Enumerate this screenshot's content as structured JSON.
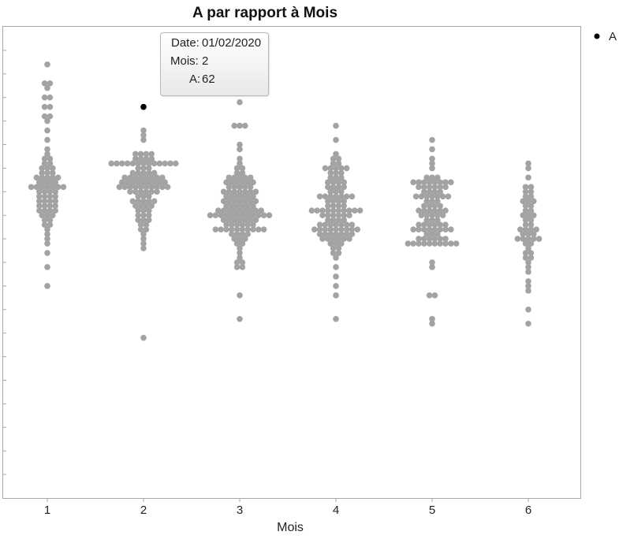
{
  "chart_data": {
    "type": "scatter",
    "style": "beeswarm",
    "title": "A par rapport à Mois",
    "xlabel": "Mois",
    "ylabel": "",
    "categories": [
      "1",
      "2",
      "3",
      "4",
      "5",
      "6"
    ],
    "ylim": [
      0,
      100
    ],
    "grid": false,
    "legend": {
      "position": "top-right",
      "entries": [
        "A"
      ]
    },
    "point_color": "#a3a3a3",
    "highlight_color": "#000000",
    "series": [
      {
        "name": "A",
        "category": "1",
        "values": [
          92,
          88,
          88,
          87,
          85,
          85,
          83,
          83,
          81,
          81,
          80,
          78,
          76,
          74,
          73,
          72,
          72,
          71,
          71,
          70,
          70,
          70,
          69,
          69,
          69,
          68,
          68,
          68,
          68,
          68,
          67,
          67,
          67,
          67,
          66,
          66,
          66,
          66,
          66,
          66,
          66,
          65,
          65,
          65,
          65,
          64,
          64,
          64,
          64,
          63,
          63,
          63,
          63,
          62,
          62,
          62,
          62,
          61,
          61,
          61,
          61,
          60,
          60,
          60,
          59,
          59,
          58,
          58,
          57,
          56,
          55,
          54,
          52,
          49,
          45
        ]
      },
      {
        "name": "A",
        "category": "2",
        "values": [
          62,
          83,
          78,
          77,
          76,
          73,
          73,
          73,
          73,
          72,
          72,
          72,
          72,
          71,
          71,
          71,
          71,
          71,
          71,
          71,
          71,
          71,
          71,
          71,
          71,
          71,
          70,
          70,
          70,
          69,
          69,
          69,
          69,
          69,
          68,
          68,
          68,
          68,
          68,
          68,
          68,
          68,
          67,
          67,
          67,
          67,
          67,
          67,
          67,
          67,
          67,
          66,
          66,
          66,
          66,
          66,
          66,
          66,
          66,
          66,
          66,
          65,
          65,
          65,
          65,
          65,
          65,
          64,
          64,
          64,
          63,
          63,
          63,
          63,
          63,
          62,
          62,
          62,
          61,
          61,
          61,
          60,
          60,
          60,
          59,
          59,
          59,
          58,
          58,
          57,
          57,
          56,
          55,
          54,
          53,
          34
        ]
      },
      {
        "name": "A",
        "category": "3",
        "values": [
          87,
          84,
          79,
          79,
          79,
          75,
          74,
          72,
          71,
          70,
          70,
          69,
          69,
          68,
          68,
          68,
          68,
          68,
          67,
          67,
          67,
          67,
          67,
          67,
          66,
          66,
          66,
          66,
          66,
          65,
          65,
          65,
          65,
          65,
          65,
          65,
          64,
          64,
          64,
          64,
          64,
          64,
          63,
          63,
          63,
          63,
          63,
          63,
          63,
          62,
          62,
          62,
          62,
          62,
          62,
          61,
          61,
          61,
          61,
          61,
          61,
          61,
          61,
          61,
          60,
          60,
          60,
          60,
          60,
          60,
          60,
          60,
          60,
          60,
          60,
          60,
          59,
          59,
          59,
          59,
          59,
          59,
          59,
          58,
          58,
          58,
          58,
          58,
          58,
          57,
          57,
          57,
          57,
          57,
          57,
          57,
          57,
          57,
          57,
          56,
          56,
          56,
          56,
          55,
          55,
          55,
          54,
          54,
          53,
          52,
          51,
          50,
          50,
          49,
          49,
          43,
          38
        ]
      },
      {
        "name": "A",
        "category": "4",
        "values": [
          79,
          76,
          73,
          72,
          72,
          71,
          71,
          70,
          70,
          70,
          70,
          70,
          69,
          69,
          69,
          68,
          68,
          68,
          67,
          67,
          67,
          67,
          66,
          66,
          66,
          66,
          65,
          65,
          65,
          64,
          64,
          64,
          64,
          64,
          64,
          64,
          63,
          63,
          63,
          63,
          62,
          62,
          62,
          62,
          61,
          61,
          61,
          61,
          61,
          61,
          61,
          61,
          61,
          61,
          60,
          60,
          60,
          60,
          60,
          60,
          59,
          59,
          59,
          59,
          58,
          58,
          58,
          58,
          58,
          58,
          58,
          57,
          57,
          57,
          57,
          57,
          57,
          57,
          57,
          57,
          56,
          56,
          56,
          56,
          56,
          56,
          56,
          55,
          55,
          55,
          55,
          55,
          55,
          54,
          54,
          54,
          53,
          53,
          52,
          52,
          51,
          49,
          47,
          45,
          43,
          38
        ]
      },
      {
        "name": "A",
        "category": "5",
        "values": [
          76,
          74,
          72,
          71,
          70,
          68,
          68,
          68,
          67,
          67,
          67,
          67,
          67,
          67,
          67,
          67,
          66,
          66,
          66,
          66,
          66,
          66,
          65,
          65,
          65,
          65,
          64,
          64,
          64,
          64,
          64,
          64,
          64,
          63,
          63,
          63,
          62,
          62,
          62,
          62,
          61,
          61,
          61,
          61,
          61,
          61,
          60,
          60,
          60,
          60,
          60,
          59,
          59,
          59,
          58,
          58,
          58,
          58,
          58,
          58,
          57,
          57,
          57,
          57,
          57,
          57,
          57,
          57,
          56,
          56,
          56,
          55,
          55,
          55,
          55,
          55,
          55,
          54,
          54,
          54,
          54,
          54,
          54,
          54,
          54,
          54,
          54,
          50,
          49,
          43,
          43,
          38,
          37
        ]
      },
      {
        "name": "A",
        "category": "6",
        "values": [
          71,
          70,
          68,
          66,
          66,
          65,
          65,
          64,
          64,
          63,
          63,
          63,
          62,
          62,
          61,
          61,
          60,
          60,
          60,
          59,
          59,
          58,
          58,
          57,
          57,
          57,
          57,
          56,
          56,
          56,
          55,
          55,
          55,
          55,
          55,
          54,
          54,
          53,
          52,
          52,
          51,
          51,
          50,
          49,
          48,
          46,
          45,
          44,
          40,
          37
        ]
      }
    ],
    "highlight": {
      "category": "2",
      "value": 62,
      "series": "A"
    }
  },
  "tooltip": {
    "date_label": "Date:",
    "date_value": "01/02/2020",
    "mois_label": "Mois:",
    "mois_value": "2",
    "a_label": "A:",
    "a_value": "62"
  }
}
